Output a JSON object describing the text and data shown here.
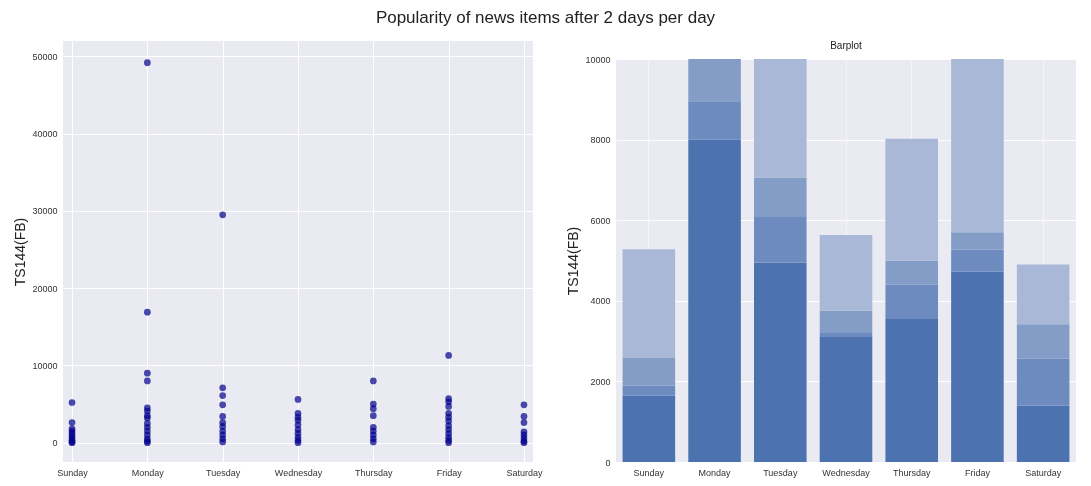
{
  "chart_data": [
    {
      "type": "scatter",
      "title": "Popularity of news items after 2 days per day",
      "ylabel": "TS144(FB)",
      "categories": [
        "Sunday",
        "Monday",
        "Tuesday",
        "Wednesday",
        "Thursday",
        "Friday",
        "Saturday"
      ],
      "series": [
        {
          "color": "#00008b",
          "x": [
            "Sunday",
            "Sunday",
            "Sunday",
            "Sunday",
            "Sunday",
            "Sunday",
            "Sunday",
            "Sunday",
            "Sunday",
            "Sunday",
            "Monday",
            "Monday",
            "Monday",
            "Monday",
            "Monday",
            "Monday",
            "Monday",
            "Monday",
            "Monday",
            "Monday",
            "Monday",
            "Monday",
            "Monday",
            "Monday",
            "Monday",
            "Tuesday",
            "Tuesday",
            "Tuesday",
            "Tuesday",
            "Tuesday",
            "Tuesday",
            "Tuesday",
            "Tuesday",
            "Tuesday",
            "Tuesday",
            "Tuesday",
            "Wednesday",
            "Wednesday",
            "Wednesday",
            "Wednesday",
            "Wednesday",
            "Wednesday",
            "Wednesday",
            "Wednesday",
            "Wednesday",
            "Wednesday",
            "Thursday",
            "Thursday",
            "Thursday",
            "Thursday",
            "Thursday",
            "Thursday",
            "Thursday",
            "Thursday",
            "Thursday",
            "Friday",
            "Friday",
            "Friday",
            "Friday",
            "Friday",
            "Friday",
            "Friday",
            "Friday",
            "Friday",
            "Friday",
            "Friday",
            "Friday",
            "Friday",
            "Saturday",
            "Saturday",
            "Saturday",
            "Saturday",
            "Saturday",
            "Saturday",
            "Saturday",
            "Saturday"
          ],
          "values": [
            5200,
            2600,
            1800,
            1500,
            1200,
            900,
            600,
            300,
            100,
            0,
            49200,
            16900,
            9000,
            8000,
            4500,
            4100,
            3500,
            3200,
            2500,
            2000,
            1500,
            1000,
            500,
            200,
            0,
            29500,
            7100,
            6100,
            4900,
            3400,
            2600,
            2100,
            1500,
            1000,
            500,
            100,
            5600,
            3800,
            3300,
            2900,
            2300,
            1700,
            1200,
            700,
            300,
            0,
            8000,
            5000,
            4400,
            3500,
            2000,
            1500,
            1000,
            500,
            100,
            11300,
            5700,
            5300,
            4700,
            3800,
            3300,
            2800,
            2200,
            1700,
            1200,
            700,
            300,
            0,
            4900,
            3400,
            2600,
            1400,
            1000,
            600,
            200,
            0
          ]
        }
      ],
      "ylim": [
        -2500,
        52000
      ],
      "yticks": [
        0,
        10000,
        20000,
        30000,
        40000,
        50000
      ],
      "grid": true,
      "marker": "circle"
    },
    {
      "type": "bar",
      "title": "Barplot",
      "ylabel": "TS144(FB)",
      "categories": [
        "Sunday",
        "Monday",
        "Tuesday",
        "Wednesday",
        "Thursday",
        "Friday",
        "Saturday"
      ],
      "series": [
        {
          "color": "#4c72b0",
          "values": [
            1650,
            8000,
            4950,
            3100,
            3550,
            4720,
            1400
          ]
        },
        {
          "color": "#6d8bbf",
          "values": [
            250,
            950,
            1130,
            100,
            850,
            550,
            1160
          ]
        },
        {
          "color": "#849dc7",
          "values": [
            680,
            1050,
            980,
            560,
            600,
            430,
            860
          ]
        },
        {
          "color": "#a9b8d6",
          "values": [
            2700,
            null,
            2940,
            1870,
            3020,
            4300,
            1480
          ]
        }
      ],
      "stacked": true,
      "ylim": [
        0,
        10000
      ],
      "yticks": [
        0,
        2000,
        4000,
        6000,
        8000,
        10000
      ],
      "grid": true
    }
  ]
}
